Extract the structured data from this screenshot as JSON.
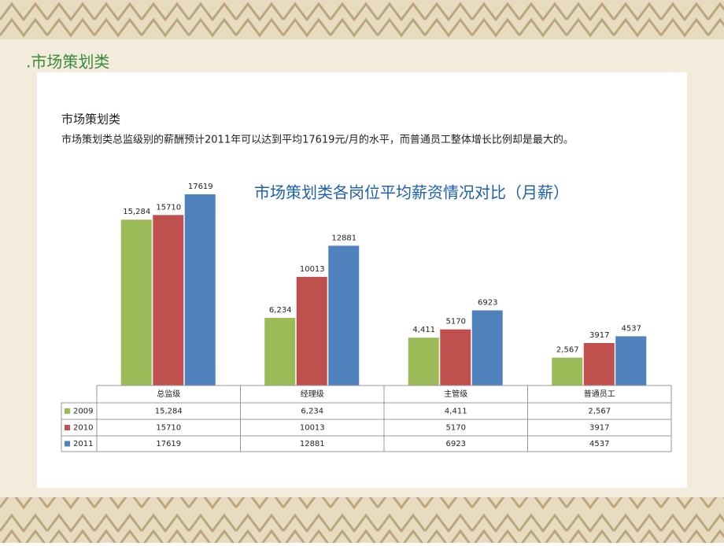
{
  "slide": {
    "title": ".市场策划类",
    "heading": "市场策划类",
    "description": "市场策划类总监级别的薪酬预计2011年可以达到平均17619元/月的水平，而普通员工整体增长比例却是最大的。"
  },
  "chart_data": {
    "type": "bar",
    "title": "市场策划类各岗位平均薪资情况对比（月薪）",
    "categories": [
      "总监级",
      "经理级",
      "主管级",
      "普通员工"
    ],
    "series": [
      {
        "name": "2009",
        "color": "#9bbb59",
        "values": [
          15284,
          6234,
          4411,
          2567
        ],
        "value_labels": [
          "15,284",
          "6,234",
          "4,411",
          "2,567"
        ]
      },
      {
        "name": "2010",
        "color": "#c0504d",
        "values": [
          15710,
          10013,
          5170,
          3917
        ]
      },
      {
        "name": "2011",
        "color": "#4f81bd",
        "values": [
          17619,
          12881,
          6923,
          4537
        ]
      }
    ]
  }
}
